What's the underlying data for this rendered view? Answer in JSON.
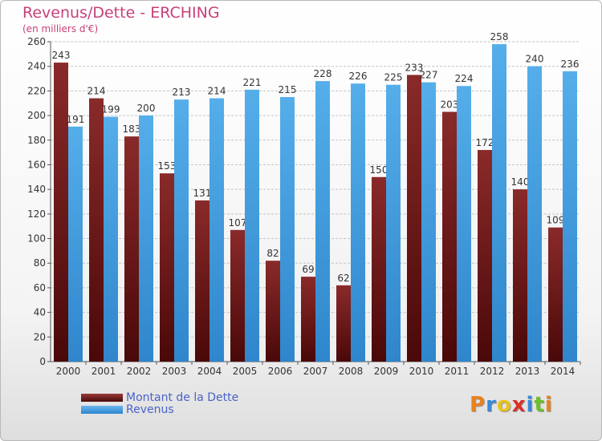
{
  "chart_data": {
    "type": "bar",
    "title": "Revenus/Dette - ERCHING",
    "subtitle": "(en milliers d'€)",
    "categories": [
      "2000",
      "2001",
      "2002",
      "2003",
      "2004",
      "2005",
      "2006",
      "2007",
      "2008",
      "2009",
      "2010",
      "2011",
      "2012",
      "2013",
      "2014"
    ],
    "series": [
      {
        "name": "Montant de la Dette",
        "values": [
          243,
          214,
          183,
          153,
          131,
          107,
          82,
          69,
          62,
          150,
          233,
          203,
          172,
          140,
          109
        ],
        "color": "#7a1e1e"
      },
      {
        "name": "Revenus",
        "values": [
          191,
          199,
          200,
          213,
          214,
          221,
          215,
          228,
          226,
          225,
          227,
          224,
          258,
          240,
          236
        ],
        "color": "#3f9de0"
      }
    ],
    "ylim": [
      0,
      260
    ],
    "yticks": [
      0,
      20,
      40,
      60,
      80,
      100,
      120,
      140,
      160,
      180,
      200,
      220,
      240,
      260
    ],
    "grid": true,
    "legend_position": "bottom-left"
  },
  "logo": {
    "letters": [
      "P",
      "r",
      "o",
      "x",
      "i",
      "t",
      "i"
    ],
    "colors": [
      "#e8821e",
      "#3b88d6",
      "#e8c21e",
      "#d8322a",
      "#3b88d6",
      "#6cbf2a",
      "#e8821e"
    ]
  }
}
